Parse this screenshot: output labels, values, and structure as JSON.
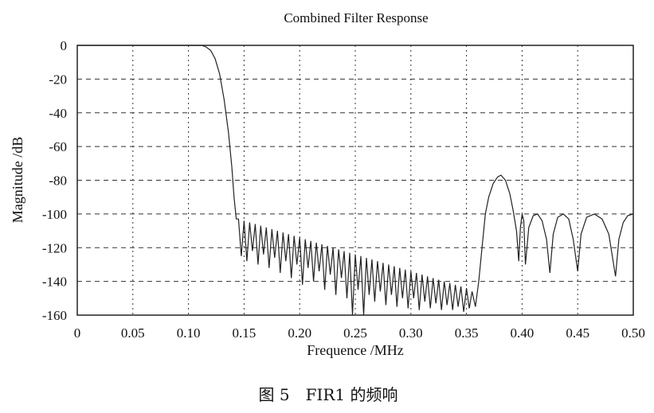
{
  "chart_data": {
    "type": "line",
    "title": "Combined Filter Response",
    "xlabel": "Frequence /MHz",
    "ylabel": "Magnitude /dB",
    "xlim": [
      0,
      0.5
    ],
    "ylim": [
      -160,
      0
    ],
    "grid": true,
    "x_ticks": [
      "0",
      "0.05",
      "0.10",
      "0.15",
      "0.20",
      "0.25",
      "0.30",
      "0.35",
      "0.40",
      "0.45",
      "0.50"
    ],
    "x_tick_values": [
      0,
      0.05,
      0.1,
      0.15,
      0.2,
      0.25,
      0.3,
      0.35,
      0.4,
      0.45,
      0.5
    ],
    "y_ticks": [
      "0",
      "-20",
      "-40",
      "-60",
      "-80",
      "-100",
      "-120",
      "-140",
      "-160"
    ],
    "y_tick_values": [
      0,
      -20,
      -40,
      -60,
      -80,
      -100,
      -120,
      -140,
      -160
    ],
    "series": [
      {
        "name": "FIR1",
        "color": "#222222",
        "points": [
          [
            0,
            0
          ],
          [
            0.05,
            0
          ],
          [
            0.1,
            0
          ],
          [
            0.112,
            0
          ],
          [
            0.116,
            -1
          ],
          [
            0.12,
            -3
          ],
          [
            0.124,
            -8
          ],
          [
            0.128,
            -17
          ],
          [
            0.132,
            -32
          ],
          [
            0.136,
            -52
          ],
          [
            0.139,
            -72
          ],
          [
            0.141,
            -90
          ],
          [
            0.143,
            -103
          ],
          [
            0.145,
            -103
          ],
          [
            0.1475,
            -125
          ],
          [
            0.15,
            -104
          ],
          [
            0.1525,
            -128
          ],
          [
            0.155,
            -105
          ],
          [
            0.1575,
            -122
          ],
          [
            0.16,
            -106
          ],
          [
            0.1625,
            -130
          ],
          [
            0.165,
            -107
          ],
          [
            0.1675,
            -124
          ],
          [
            0.17,
            -108
          ],
          [
            0.1725,
            -132
          ],
          [
            0.175,
            -109
          ],
          [
            0.1775,
            -126
          ],
          [
            0.18,
            -110
          ],
          [
            0.1825,
            -135
          ],
          [
            0.185,
            -111
          ],
          [
            0.1875,
            -128
          ],
          [
            0.19,
            -112
          ],
          [
            0.1925,
            -138
          ],
          [
            0.195,
            -113
          ],
          [
            0.1975,
            -130
          ],
          [
            0.2,
            -114
          ],
          [
            0.2025,
            -142
          ],
          [
            0.205,
            -115
          ],
          [
            0.2075,
            -132
          ],
          [
            0.21,
            -116
          ],
          [
            0.2125,
            -140
          ],
          [
            0.215,
            -117
          ],
          [
            0.2175,
            -134
          ],
          [
            0.22,
            -118
          ],
          [
            0.2225,
            -145
          ],
          [
            0.225,
            -119
          ],
          [
            0.2275,
            -136
          ],
          [
            0.23,
            -120
          ],
          [
            0.2325,
            -148
          ],
          [
            0.235,
            -121
          ],
          [
            0.2375,
            -138
          ],
          [
            0.24,
            -122
          ],
          [
            0.2425,
            -150
          ],
          [
            0.245,
            -123
          ],
          [
            0.2475,
            -160
          ],
          [
            0.25,
            -124
          ],
          [
            0.2525,
            -145
          ],
          [
            0.255,
            -125
          ],
          [
            0.2575,
            -160
          ],
          [
            0.26,
            -126
          ],
          [
            0.2625,
            -148
          ],
          [
            0.265,
            -127
          ],
          [
            0.2675,
            -152
          ],
          [
            0.27,
            -128
          ],
          [
            0.2725,
            -146
          ],
          [
            0.275,
            -129
          ],
          [
            0.2775,
            -154
          ],
          [
            0.28,
            -130
          ],
          [
            0.2825,
            -148
          ],
          [
            0.285,
            -131
          ],
          [
            0.2875,
            -155
          ],
          [
            0.29,
            -132
          ],
          [
            0.2925,
            -150
          ],
          [
            0.295,
            -133
          ],
          [
            0.2975,
            -156
          ],
          [
            0.3,
            -134
          ],
          [
            0.3025,
            -150
          ],
          [
            0.305,
            -135
          ],
          [
            0.3075,
            -157
          ],
          [
            0.31,
            -136
          ],
          [
            0.3125,
            -152
          ],
          [
            0.315,
            -137
          ],
          [
            0.3175,
            -156
          ],
          [
            0.32,
            -138
          ],
          [
            0.3225,
            -153
          ],
          [
            0.325,
            -139
          ],
          [
            0.3275,
            -157
          ],
          [
            0.33,
            -140
          ],
          [
            0.3325,
            -154
          ],
          [
            0.335,
            -141
          ],
          [
            0.3375,
            -157
          ],
          [
            0.34,
            -142
          ],
          [
            0.3425,
            -155
          ],
          [
            0.345,
            -143
          ],
          [
            0.3475,
            -158
          ],
          [
            0.35,
            -144
          ],
          [
            0.3525,
            -156
          ],
          [
            0.355,
            -146
          ],
          [
            0.358,
            -155
          ],
          [
            0.361,
            -140
          ],
          [
            0.364,
            -120
          ],
          [
            0.367,
            -100
          ],
          [
            0.37,
            -90
          ],
          [
            0.374,
            -82
          ],
          [
            0.378,
            -78
          ],
          [
            0.381,
            -77
          ],
          [
            0.385,
            -80
          ],
          [
            0.389,
            -88
          ],
          [
            0.392,
            -98
          ],
          [
            0.395,
            -110
          ],
          [
            0.397,
            -128
          ],
          [
            0.3985,
            -108
          ],
          [
            0.4,
            -100
          ],
          [
            0.4015,
            -104
          ],
          [
            0.403,
            -130
          ],
          [
            0.406,
            -108
          ],
          [
            0.41,
            -101
          ],
          [
            0.414,
            -100
          ],
          [
            0.418,
            -104
          ],
          [
            0.422,
            -115
          ],
          [
            0.425,
            -135
          ],
          [
            0.428,
            -112
          ],
          [
            0.432,
            -102
          ],
          [
            0.437,
            -100
          ],
          [
            0.442,
            -103
          ],
          [
            0.446,
            -115
          ],
          [
            0.45,
            -134
          ],
          [
            0.453,
            -112
          ],
          [
            0.458,
            -102
          ],
          [
            0.465,
            -100
          ],
          [
            0.472,
            -103
          ],
          [
            0.478,
            -112
          ],
          [
            0.484,
            -137
          ],
          [
            0.487,
            -115
          ],
          [
            0.491,
            -105
          ],
          [
            0.495,
            -101
          ],
          [
            0.5,
            -100
          ]
        ]
      }
    ]
  },
  "caption": "图 5　FIR1 的频响"
}
